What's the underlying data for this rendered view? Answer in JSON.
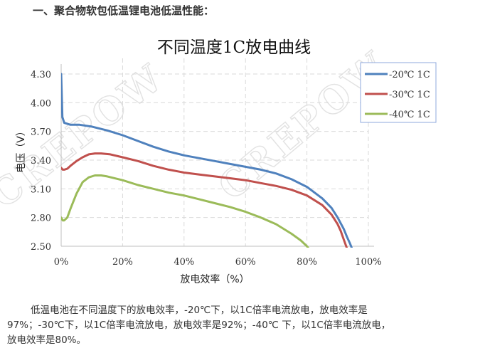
{
  "heading": "一、聚合物软包低温锂电池低温性能：",
  "paragraph": {
    "line1": "低温电池在不同温度下的放电效率，-20℃下，以1C倍率电流放电，放电效率是",
    "line2": "97%；-30℃下，以1C倍率电流放电，放电效率是92%；-40℃ 下，以1C倍率电流放电，",
    "line3": "放电效率是80%。"
  },
  "watermark": "CREPOW",
  "chart_data": {
    "type": "line",
    "title": "不同温度1C放电曲线",
    "xlabel": "放电效率（%）",
    "ylabel": "电压（V）",
    "xlim": [
      0,
      100
    ],
    "ylim": [
      2.5,
      4.3
    ],
    "xticks": [
      "0%",
      "20%",
      "40%",
      "60%",
      "80%",
      "100%"
    ],
    "yticks": [
      "2.50",
      "2.80",
      "3.10",
      "3.40",
      "3.70",
      "4.00",
      "4.30"
    ],
    "grid": true,
    "legend_position": "top-right",
    "series": [
      {
        "name": "-20℃ 1C",
        "color": "#4f81bd",
        "x": [
          0,
          0.4,
          1,
          3,
          6,
          10,
          15,
          20,
          25,
          30,
          35,
          40,
          45,
          50,
          55,
          60,
          65,
          70,
          75,
          80,
          85,
          88,
          90,
          92,
          93,
          94,
          95
        ],
        "y": [
          4.3,
          3.85,
          3.79,
          3.77,
          3.77,
          3.75,
          3.71,
          3.66,
          3.6,
          3.54,
          3.49,
          3.45,
          3.42,
          3.39,
          3.36,
          3.33,
          3.3,
          3.26,
          3.2,
          3.12,
          3.0,
          2.9,
          2.8,
          2.68,
          2.6,
          2.53,
          2.45
        ]
      },
      {
        "name": "-30℃ 1C",
        "color": "#c0504d",
        "x": [
          0,
          0.5,
          1,
          2,
          3,
          5,
          7,
          9,
          11,
          13,
          16,
          20,
          25,
          30,
          35,
          40,
          45,
          50,
          55,
          60,
          65,
          70,
          75,
          80,
          85,
          88,
          90,
          91,
          92,
          93
        ],
        "y": [
          3.32,
          3.3,
          3.3,
          3.31,
          3.34,
          3.39,
          3.43,
          3.46,
          3.47,
          3.47,
          3.46,
          3.43,
          3.39,
          3.34,
          3.3,
          3.27,
          3.25,
          3.23,
          3.21,
          3.19,
          3.16,
          3.13,
          3.09,
          3.03,
          2.93,
          2.83,
          2.73,
          2.66,
          2.57,
          2.48
        ]
      },
      {
        "name": "-40℃ 1C",
        "color": "#9bbb59",
        "x": [
          0,
          0.5,
          1,
          2,
          3,
          5,
          7,
          9,
          11,
          13,
          15,
          20,
          25,
          30,
          35,
          40,
          45,
          50,
          55,
          60,
          65,
          70,
          75,
          78,
          80,
          81
        ],
        "y": [
          2.8,
          2.77,
          2.77,
          2.8,
          2.89,
          3.05,
          3.17,
          3.22,
          3.24,
          3.24,
          3.23,
          3.19,
          3.14,
          3.1,
          3.06,
          3.03,
          2.99,
          2.95,
          2.91,
          2.86,
          2.8,
          2.73,
          2.63,
          2.56,
          2.5,
          2.46
        ]
      }
    ]
  }
}
